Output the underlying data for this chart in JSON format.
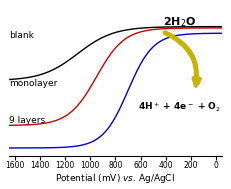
{
  "xlabel": "Potential (mV) ×vs. Ag/AgCl",
  "xlim": [
    1650,
    -50
  ],
  "ylim": [
    -0.05,
    1.1
  ],
  "xticks": [
    1600,
    1400,
    1200,
    1000,
    800,
    600,
    400,
    200,
    0
  ],
  "background_color": "#ffffff",
  "lines": {
    "blank": {
      "color": "#000000",
      "label": "blank"
    },
    "monolayer": {
      "color": "#cc0000",
      "label": "monolayer"
    },
    "9layers": {
      "color": "#0000cc",
      "label": "9 layers"
    }
  },
  "arrow_color": "#c8b400",
  "label_fontsize": 6.5,
  "xlabel_fontsize": 6.5,
  "tick_fontsize": 5.5,
  "annotation_fontsize": 8
}
